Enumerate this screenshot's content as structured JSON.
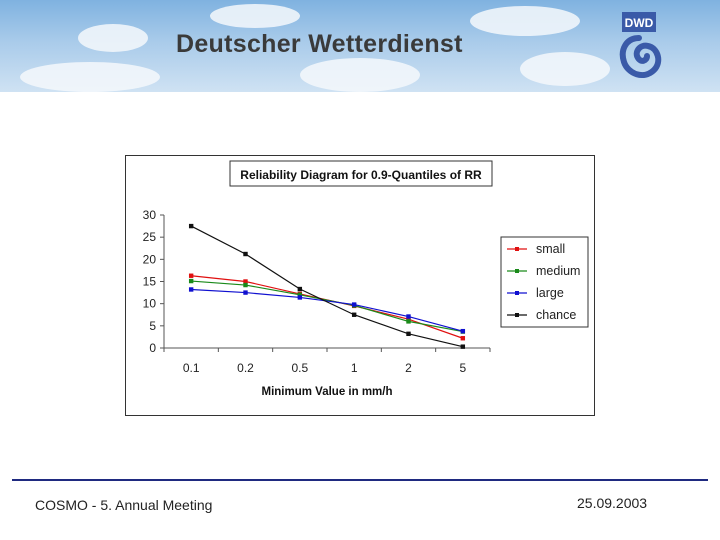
{
  "header": {
    "title": "Deutscher Wetterdienst",
    "logo_text": "DWD"
  },
  "footer": {
    "left": "COSMO - 5. Annual Meeting",
    "right": "25.09.2003"
  },
  "colors": {
    "small": "#e01010",
    "medium": "#1a8a1a",
    "large": "#1010d0",
    "chance": "#111111",
    "footer_rule": "#1f2a80"
  },
  "chart_data": {
    "type": "line",
    "title": "Reliability Diagram for 0.9-Quantiles of RR",
    "xlabel": "Minimum Value in mm/h",
    "ylabel": "",
    "categories": [
      "0.1",
      "0.2",
      "0.5",
      "1",
      "2",
      "5"
    ],
    "yticks": [
      "0",
      "5",
      "10",
      "15",
      "20",
      "25",
      "30"
    ],
    "ylim": [
      0,
      30
    ],
    "grid": false,
    "legend": "right",
    "series": [
      {
        "name": "small",
        "values": [
          16.3,
          15.0,
          12.2,
          9.5,
          6.5,
          2.2
        ]
      },
      {
        "name": "medium",
        "values": [
          15.1,
          14.2,
          12.0,
          9.6,
          6.0,
          3.7
        ]
      },
      {
        "name": "large",
        "values": [
          13.2,
          12.5,
          11.4,
          9.8,
          7.1,
          3.8
        ]
      },
      {
        "name": "chance",
        "values": [
          27.5,
          21.2,
          13.3,
          7.5,
          3.2,
          0.3
        ]
      }
    ]
  }
}
